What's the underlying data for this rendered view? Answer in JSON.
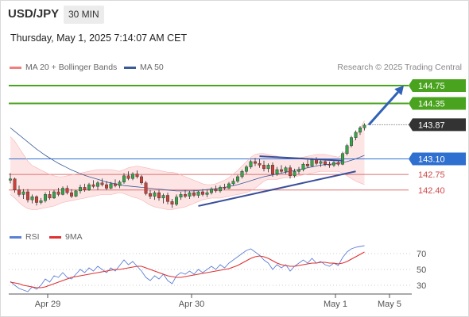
{
  "header": {
    "symbol": "USD/JPY",
    "timeframe": "30 MIN",
    "datetime": "Thursday, May 1, 2025 7:14:07 AM CET",
    "credit": "Research © 2025 Trading Central"
  },
  "legend": {
    "bollinger": {
      "label": "MA 20 + Bollinger Bands",
      "color": "#f08080"
    },
    "ma50": {
      "label": "MA 50",
      "color": "#3a5a9a"
    }
  },
  "rsi_legend": {
    "rsi": {
      "label": "RSI",
      "color": "#5b7fd6"
    },
    "ma9": {
      "label": "9MA",
      "color": "#e03030"
    }
  },
  "chart_data": [
    {
      "type": "candlestick",
      "title": "USD/JPY 30 MIN",
      "x_ticks": [
        "Apr 29",
        "Apr 30",
        "May 1",
        "May 5"
      ],
      "ylim": [
        141.95,
        145.0
      ],
      "grid": false,
      "legend_position": "top-left",
      "current_price": {
        "value": 143.87,
        "label": "143.87",
        "color": "#333333"
      },
      "levels": [
        {
          "value": 144.75,
          "label": "144.75",
          "kind": "resistance",
          "color": "#4aa31f"
        },
        {
          "value": 144.35,
          "label": "144.35",
          "kind": "resistance",
          "color": "#4aa31f"
        },
        {
          "value": 143.1,
          "label": "143.10",
          "kind": "pivot",
          "color": "#2f6fd0"
        },
        {
          "value": 142.75,
          "label": "142.75",
          "kind": "support",
          "color": "#e07070"
        },
        {
          "value": 142.4,
          "label": "142.40",
          "kind": "support",
          "color": "#e07070"
        }
      ],
      "candles": [
        [
          142.62,
          142.78,
          142.55,
          142.65
        ],
        [
          142.65,
          142.68,
          142.34,
          142.4
        ],
        [
          142.4,
          142.5,
          142.25,
          142.3
        ],
        [
          142.3,
          142.42,
          142.2,
          142.36
        ],
        [
          142.36,
          142.42,
          142.12,
          142.18
        ],
        [
          142.18,
          142.3,
          142.1,
          142.25
        ],
        [
          142.25,
          142.28,
          142.05,
          142.12
        ],
        [
          142.12,
          142.22,
          142.08,
          142.16
        ],
        [
          142.16,
          142.35,
          142.12,
          142.3
        ],
        [
          142.3,
          142.38,
          142.18,
          142.22
        ],
        [
          142.22,
          142.4,
          142.2,
          142.36
        ],
        [
          142.36,
          142.45,
          142.26,
          142.3
        ],
        [
          142.3,
          142.48,
          142.28,
          142.44
        ],
        [
          142.44,
          142.5,
          142.3,
          142.34
        ],
        [
          142.34,
          142.42,
          142.22,
          142.26
        ],
        [
          142.26,
          142.4,
          142.24,
          142.38
        ],
        [
          142.38,
          142.52,
          142.32,
          142.46
        ],
        [
          142.46,
          142.54,
          142.36,
          142.4
        ],
        [
          142.4,
          142.56,
          142.38,
          142.52
        ],
        [
          142.52,
          142.62,
          142.44,
          142.48
        ],
        [
          142.48,
          142.6,
          142.4,
          142.56
        ],
        [
          142.56,
          142.66,
          142.48,
          142.52
        ],
        [
          142.52,
          142.6,
          142.4,
          142.44
        ],
        [
          142.44,
          142.58,
          142.42,
          142.54
        ],
        [
          142.54,
          142.64,
          142.46,
          142.5
        ],
        [
          142.5,
          142.62,
          142.44,
          142.58
        ],
        [
          142.58,
          142.78,
          142.54,
          142.72
        ],
        [
          142.72,
          142.82,
          142.62,
          142.66
        ],
        [
          142.66,
          142.8,
          142.62,
          142.76
        ],
        [
          142.76,
          142.84,
          142.66,
          142.7
        ],
        [
          142.7,
          142.74,
          142.52,
          142.56
        ],
        [
          142.56,
          142.6,
          142.28,
          142.32
        ],
        [
          142.32,
          142.4,
          142.2,
          142.26
        ],
        [
          142.26,
          142.38,
          142.18,
          142.34
        ],
        [
          142.34,
          142.4,
          142.16,
          142.22
        ],
        [
          142.22,
          142.32,
          142.1,
          142.28
        ],
        [
          142.28,
          142.34,
          142.08,
          142.14
        ],
        [
          142.14,
          142.2,
          142.0,
          142.08
        ],
        [
          142.08,
          142.3,
          142.04,
          142.24
        ],
        [
          142.24,
          142.36,
          142.18,
          142.3
        ],
        [
          142.3,
          142.4,
          142.22,
          142.26
        ],
        [
          142.26,
          142.38,
          142.2,
          142.34
        ],
        [
          142.34,
          142.4,
          142.24,
          142.28
        ],
        [
          142.28,
          142.38,
          142.22,
          142.36
        ],
        [
          142.36,
          142.42,
          142.26,
          142.3
        ],
        [
          142.3,
          142.4,
          142.24,
          142.34
        ],
        [
          142.34,
          142.46,
          142.3,
          142.42
        ],
        [
          142.42,
          142.5,
          142.34,
          142.38
        ],
        [
          142.38,
          142.5,
          142.34,
          142.46
        ],
        [
          142.46,
          142.54,
          142.4,
          142.44
        ],
        [
          142.44,
          142.58,
          142.42,
          142.54
        ],
        [
          142.54,
          142.66,
          142.5,
          142.6
        ],
        [
          142.6,
          142.74,
          142.56,
          142.7
        ],
        [
          142.7,
          142.86,
          142.66,
          142.82
        ],
        [
          142.82,
          142.96,
          142.76,
          142.92
        ],
        [
          142.92,
          143.08,
          142.88,
          143.04
        ],
        [
          143.04,
          143.12,
          142.94,
          143.0
        ],
        [
          143.0,
          143.1,
          142.9,
          142.96
        ],
        [
          142.96,
          143.06,
          142.82,
          142.88
        ],
        [
          142.88,
          143.0,
          142.8,
          142.96
        ],
        [
          142.96,
          143.02,
          142.7,
          142.76
        ],
        [
          142.76,
          142.92,
          142.72,
          142.86
        ],
        [
          142.86,
          142.96,
          142.78,
          142.82
        ],
        [
          142.82,
          142.94,
          142.76,
          142.9
        ],
        [
          142.9,
          142.96,
          142.66,
          142.72
        ],
        [
          142.72,
          142.88,
          142.68,
          142.82
        ],
        [
          142.82,
          142.92,
          142.76,
          142.86
        ],
        [
          142.86,
          143.02,
          142.82,
          142.98
        ],
        [
          142.98,
          143.08,
          142.9,
          142.94
        ],
        [
          142.94,
          143.12,
          142.92,
          143.08
        ],
        [
          143.08,
          143.14,
          142.96,
          143.0
        ],
        [
          143.0,
          143.08,
          142.92,
          143.04
        ],
        [
          143.04,
          143.1,
          142.94,
          142.98
        ],
        [
          142.98,
          143.04,
          142.9,
          142.96
        ],
        [
          142.96,
          143.06,
          142.92,
          143.02
        ],
        [
          143.02,
          143.08,
          142.94,
          142.98
        ],
        [
          142.98,
          143.26,
          142.96,
          143.22
        ],
        [
          143.22,
          143.44,
          143.18,
          143.4
        ],
        [
          143.4,
          143.62,
          143.36,
          143.58
        ],
        [
          143.58,
          143.74,
          143.52,
          143.7
        ],
        [
          143.7,
          143.84,
          143.64,
          143.8
        ],
        [
          143.8,
          143.9,
          143.74,
          143.86
        ]
      ],
      "ma50": [
        143.8,
        143.72,
        143.64,
        143.56,
        143.48,
        143.4,
        143.32,
        143.25,
        143.18,
        143.12,
        143.06,
        143.0,
        142.95,
        142.9,
        142.85,
        142.81,
        142.77,
        142.73,
        142.7,
        142.67,
        142.64,
        142.61,
        142.58,
        142.56,
        142.54,
        142.52,
        142.5,
        142.49,
        142.48,
        142.47,
        142.46,
        142.45,
        142.44,
        142.43,
        142.42,
        142.41,
        142.4,
        142.39,
        142.38,
        142.38,
        142.38,
        142.38,
        142.38,
        142.39,
        142.4,
        142.41,
        142.42,
        142.43,
        142.44,
        142.46,
        142.48,
        142.5,
        142.52,
        142.55,
        142.58,
        142.61,
        142.64,
        142.67,
        142.7,
        142.72,
        142.74,
        142.76,
        142.78,
        142.8,
        142.82,
        142.84,
        142.86,
        142.88,
        142.9,
        142.92,
        142.94,
        142.96,
        142.97,
        142.98,
        142.99,
        143.0,
        143.02,
        143.04,
        143.07,
        143.1,
        143.14,
        143.18
      ],
      "bollinger_upper": [
        143.6,
        143.5,
        143.35,
        143.2,
        143.05,
        142.95,
        142.9,
        142.85,
        142.8,
        142.75,
        142.72,
        142.7,
        142.7,
        142.72,
        142.74,
        142.76,
        142.78,
        142.8,
        142.82,
        142.84,
        142.86,
        142.86,
        142.86,
        142.86,
        142.84,
        142.82,
        142.86,
        142.9,
        142.92,
        142.94,
        142.92,
        142.9,
        142.88,
        142.86,
        142.84,
        142.82,
        142.8,
        142.8,
        142.78,
        142.74,
        142.7,
        142.66,
        142.62,
        142.58,
        142.54,
        142.52,
        142.52,
        142.54,
        142.58,
        142.62,
        142.68,
        142.76,
        142.84,
        142.94,
        143.04,
        143.14,
        143.2,
        143.22,
        143.22,
        143.2,
        143.18,
        143.16,
        143.14,
        143.12,
        143.12,
        143.12,
        143.12,
        143.14,
        143.16,
        143.18,
        143.2,
        143.2,
        143.2,
        143.18,
        143.16,
        143.14,
        143.2,
        143.3,
        143.42,
        143.6,
        143.78,
        143.96
      ],
      "bollinger_lower": [
        142.3,
        142.22,
        142.12,
        142.04,
        141.98,
        141.96,
        141.96,
        141.98,
        142.0,
        142.02,
        142.04,
        142.08,
        142.12,
        142.14,
        142.16,
        142.18,
        142.2,
        142.22,
        142.24,
        142.26,
        142.28,
        142.3,
        142.3,
        142.3,
        142.32,
        142.34,
        142.32,
        142.28,
        142.24,
        142.22,
        142.18,
        142.12,
        142.06,
        142.02,
        142.0,
        141.98,
        141.96,
        141.96,
        141.98,
        142.0,
        142.02,
        142.06,
        142.1,
        142.14,
        142.18,
        142.2,
        142.22,
        142.22,
        142.22,
        142.24,
        142.26,
        142.28,
        142.3,
        142.32,
        142.34,
        142.38,
        142.44,
        142.52,
        142.6,
        142.64,
        142.64,
        142.64,
        142.66,
        142.68,
        142.68,
        142.7,
        142.72,
        142.74,
        142.76,
        142.78,
        142.8,
        142.82,
        142.82,
        142.82,
        142.82,
        142.82,
        142.78,
        142.72,
        142.66,
        142.6,
        142.56,
        142.52
      ],
      "trendlines": [
        {
          "from": [
            43,
            142.04
          ],
          "to": [
            79,
            142.82
          ],
          "color": "#3a4f9a"
        },
        {
          "from": [
            57,
            143.16
          ],
          "to": [
            76,
            143.06
          ],
          "color": "#3a4f9a"
        }
      ],
      "forecast_arrow": {
        "from": [
          82,
          143.87
        ],
        "to": [
          90,
          144.75
        ],
        "color": "#2f62b8"
      }
    },
    {
      "type": "line",
      "title": "RSI",
      "ylim": [
        20,
        80
      ],
      "y_ticks": [
        70,
        50,
        30
      ],
      "series": [
        {
          "name": "RSI",
          "color": "#5b7fd6",
          "values": [
            35,
            30,
            26,
            24,
            22,
            28,
            25,
            30,
            38,
            34,
            42,
            40,
            46,
            40,
            38,
            44,
            50,
            46,
            52,
            48,
            54,
            50,
            46,
            52,
            48,
            55,
            62,
            56,
            60,
            54,
            48,
            40,
            36,
            42,
            38,
            44,
            36,
            32,
            42,
            46,
            44,
            48,
            44,
            50,
            46,
            50,
            54,
            50,
            56,
            52,
            58,
            62,
            66,
            70,
            74,
            76,
            72,
            68,
            62,
            58,
            50,
            56,
            52,
            56,
            48,
            54,
            58,
            62,
            58,
            64,
            58,
            60,
            56,
            54,
            58,
            55,
            65,
            72,
            76,
            78,
            79,
            80
          ]
        },
        {
          "name": "9MA",
          "color": "#e03030",
          "values": [
            34,
            33,
            32,
            30,
            29,
            28,
            27,
            27,
            28,
            30,
            32,
            34,
            36,
            38,
            40,
            41,
            42,
            43,
            44,
            45,
            46,
            47,
            48,
            49,
            50,
            50,
            51,
            52,
            53,
            54,
            54,
            52,
            50,
            48,
            46,
            44,
            42,
            41,
            40,
            40,
            41,
            42,
            43,
            44,
            45,
            46,
            47,
            48,
            49,
            50,
            51,
            53,
            55,
            58,
            61,
            64,
            66,
            67,
            66,
            64,
            61,
            58,
            56,
            55,
            54,
            54,
            55,
            56,
            57,
            58,
            58,
            59,
            59,
            58,
            58,
            57,
            58,
            60,
            63,
            66,
            69,
            72
          ]
        }
      ]
    }
  ]
}
